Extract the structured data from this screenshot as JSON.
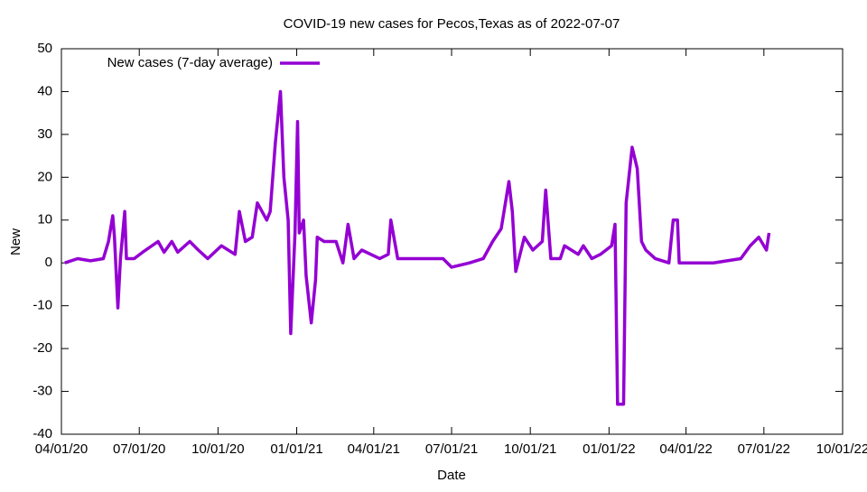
{
  "chart_data": {
    "type": "line",
    "title": "COVID-19 new cases for Pecos,Texas as of 2022-07-07",
    "x_label": "Date",
    "y_label": "New",
    "legend_position": "top-left",
    "grid": false,
    "xlim": [
      "2020-04-01",
      "2022-10-01"
    ],
    "xticks": [
      {
        "value": "2020-04-01",
        "label": "04/01/20"
      },
      {
        "value": "2020-07-01",
        "label": "07/01/20"
      },
      {
        "value": "2020-10-01",
        "label": "10/01/20"
      },
      {
        "value": "2021-01-01",
        "label": "01/01/21"
      },
      {
        "value": "2021-04-01",
        "label": "04/01/21"
      },
      {
        "value": "2021-07-01",
        "label": "07/01/21"
      },
      {
        "value": "2021-10-01",
        "label": "10/01/21"
      },
      {
        "value": "2022-01-01",
        "label": "01/01/22"
      },
      {
        "value": "2022-04-01",
        "label": "04/01/22"
      },
      {
        "value": "2022-07-01",
        "label": "07/01/22"
      },
      {
        "value": "2022-10-01",
        "label": "10/01/22"
      }
    ],
    "ylim": [
      -40,
      50
    ],
    "yticks": [
      -40,
      -30,
      -20,
      -10,
      0,
      10,
      20,
      30,
      40,
      50
    ],
    "x": [
      "2020-04-05",
      "2020-04-20",
      "2020-05-05",
      "2020-05-20",
      "2020-05-26",
      "2020-05-31",
      "2020-06-02",
      "2020-06-06",
      "2020-06-09",
      "2020-06-14",
      "2020-06-16",
      "2020-06-25",
      "2020-07-05",
      "2020-07-23",
      "2020-07-30",
      "2020-08-08",
      "2020-08-15",
      "2020-08-29",
      "2020-09-08",
      "2020-09-19",
      "2020-10-05",
      "2020-10-21",
      "2020-10-26",
      "2020-11-02",
      "2020-11-10",
      "2020-11-16",
      "2020-11-27",
      "2020-12-01",
      "2020-12-07",
      "2020-12-13",
      "2020-12-17",
      "2020-12-22",
      "2020-12-25",
      "2020-12-30",
      "2021-01-02",
      "2021-01-04",
      "2021-01-09",
      "2021-01-12",
      "2021-01-18",
      "2021-01-23",
      "2021-01-25",
      "2021-02-02",
      "2021-02-16",
      "2021-02-24",
      "2021-03-02",
      "2021-03-09",
      "2021-03-18",
      "2021-04-08",
      "2021-04-18",
      "2021-04-21",
      "2021-04-29",
      "2021-05-30",
      "2021-06-21",
      "2021-07-01",
      "2021-07-22",
      "2021-08-07",
      "2021-08-18",
      "2021-08-28",
      "2021-09-06",
      "2021-09-10",
      "2021-09-14",
      "2021-09-24",
      "2021-10-04",
      "2021-10-15",
      "2021-10-19",
      "2021-10-25",
      "2021-11-05",
      "2021-11-10",
      "2021-11-26",
      "2021-12-02",
      "2021-12-12",
      "2021-12-22",
      "2022-01-04",
      "2022-01-08",
      "2022-01-11",
      "2022-01-18",
      "2022-01-21",
      "2022-01-28",
      "2022-02-03",
      "2022-02-08",
      "2022-02-13",
      "2022-02-24",
      "2022-03-12",
      "2022-03-17",
      "2022-03-22",
      "2022-03-24",
      "2022-04-02",
      "2022-05-03",
      "2022-06-04",
      "2022-06-15",
      "2022-06-25",
      "2022-07-04",
      "2022-07-07"
    ],
    "series": [
      {
        "name": "New cases (7-day average)",
        "color": "#9400d3",
        "values": [
          0,
          1,
          0.5,
          1,
          5,
          11,
          6,
          -10.5,
          1,
          12,
          1,
          1,
          2.5,
          5,
          2.5,
          5,
          2.5,
          5,
          3,
          1,
          4,
          2,
          12,
          5,
          6,
          14,
          10,
          12,
          28,
          40,
          20,
          10,
          -16.5,
          7,
          33,
          7,
          10,
          -3,
          -14,
          -4,
          6,
          5,
          5,
          0,
          9,
          1,
          3,
          1,
          2,
          10,
          1,
          1,
          1,
          -1,
          0,
          1,
          5,
          8,
          19,
          12,
          -2,
          6,
          3,
          5,
          17,
          1,
          1,
          4,
          2,
          4,
          1,
          2,
          4,
          9,
          -33,
          -33,
          14,
          27,
          22,
          5,
          3,
          1,
          0,
          10,
          10,
          0,
          0,
          0,
          1,
          4,
          6,
          3,
          7
        ]
      }
    ]
  }
}
